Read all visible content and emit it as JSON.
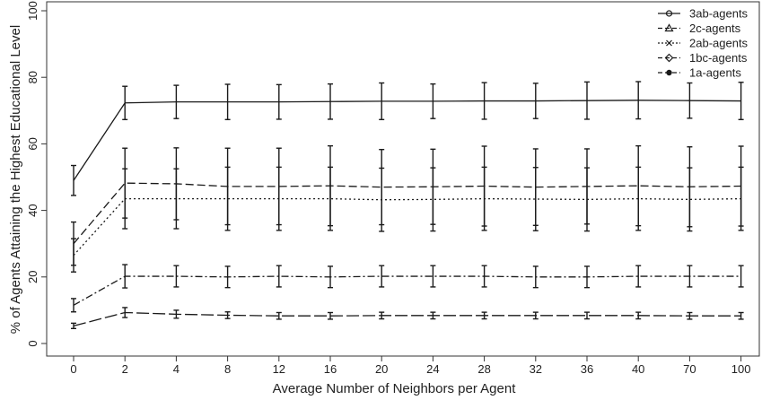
{
  "chart_data": {
    "type": "line",
    "title": "",
    "xlabel": "Average Number of Neighbors per Agent",
    "ylabel": "% of Agents Attaining the Highest Educational Level",
    "categories": [
      "0",
      "2",
      "4",
      "8",
      "12",
      "16",
      "20",
      "24",
      "28",
      "32",
      "36",
      "40",
      "70",
      "100"
    ],
    "ylim": [
      0,
      100
    ],
    "yticks": [
      "0",
      "20",
      "40",
      "60",
      "80",
      "100"
    ],
    "grid": false,
    "legend": "top-right",
    "series": [
      {
        "name": "3ab-agents",
        "dash": "solid",
        "values": [
          49,
          72.3,
          72.6,
          72.6,
          72.6,
          72.7,
          72.8,
          72.8,
          72.9,
          72.9,
          73,
          73.1,
          73,
          72.9
        ],
        "errors": [
          4.5,
          5,
          5,
          5.3,
          5.2,
          5.3,
          5.5,
          5.2,
          5.5,
          5.3,
          5.6,
          5.6,
          5.3,
          5.6
        ]
      },
      {
        "name": "2c-agents",
        "dash": "dashed",
        "values": [
          30,
          48.2,
          48,
          47.2,
          47.2,
          47.4,
          47,
          47.1,
          47.3,
          47,
          47.2,
          47.4,
          47.1,
          47.3
        ],
        "errors": [
          6.5,
          10.5,
          10.8,
          11.5,
          11.5,
          12,
          11.3,
          11.3,
          12,
          11.5,
          11.3,
          12,
          12,
          12
        ]
      },
      {
        "name": "2ab-agents",
        "dash": "dotted",
        "values": [
          26.5,
          43.5,
          43.5,
          43.5,
          43.5,
          43.5,
          43.2,
          43.3,
          43.5,
          43.4,
          43.3,
          43.5,
          43.3,
          43.5
        ],
        "errors": [
          5,
          9,
          9,
          9.5,
          9.5,
          9.5,
          9.5,
          9.5,
          9.5,
          9.5,
          9.5,
          9.5,
          9.5,
          9.5
        ]
      },
      {
        "name": "1bc-agents",
        "dash": "dashdot",
        "values": [
          11.5,
          20.2,
          20.2,
          20,
          20.2,
          20,
          20.2,
          20.2,
          20.2,
          20,
          20,
          20.2,
          20.2,
          20.2
        ],
        "errors": [
          2,
          3.5,
          3.2,
          3.2,
          3.2,
          3.2,
          3.2,
          3.2,
          3.2,
          3.2,
          3.2,
          3.2,
          3.2,
          3.2
        ]
      },
      {
        "name": "1a-agents",
        "dash": "longdash",
        "values": [
          5.3,
          9.3,
          8.8,
          8.5,
          8.3,
          8.3,
          8.4,
          8.4,
          8.4,
          8.4,
          8.4,
          8.4,
          8.3,
          8.3
        ],
        "errors": [
          0.8,
          1.5,
          1.2,
          1,
          1,
          1,
          1,
          1,
          1,
          1,
          1,
          1,
          1,
          1
        ]
      }
    ]
  }
}
